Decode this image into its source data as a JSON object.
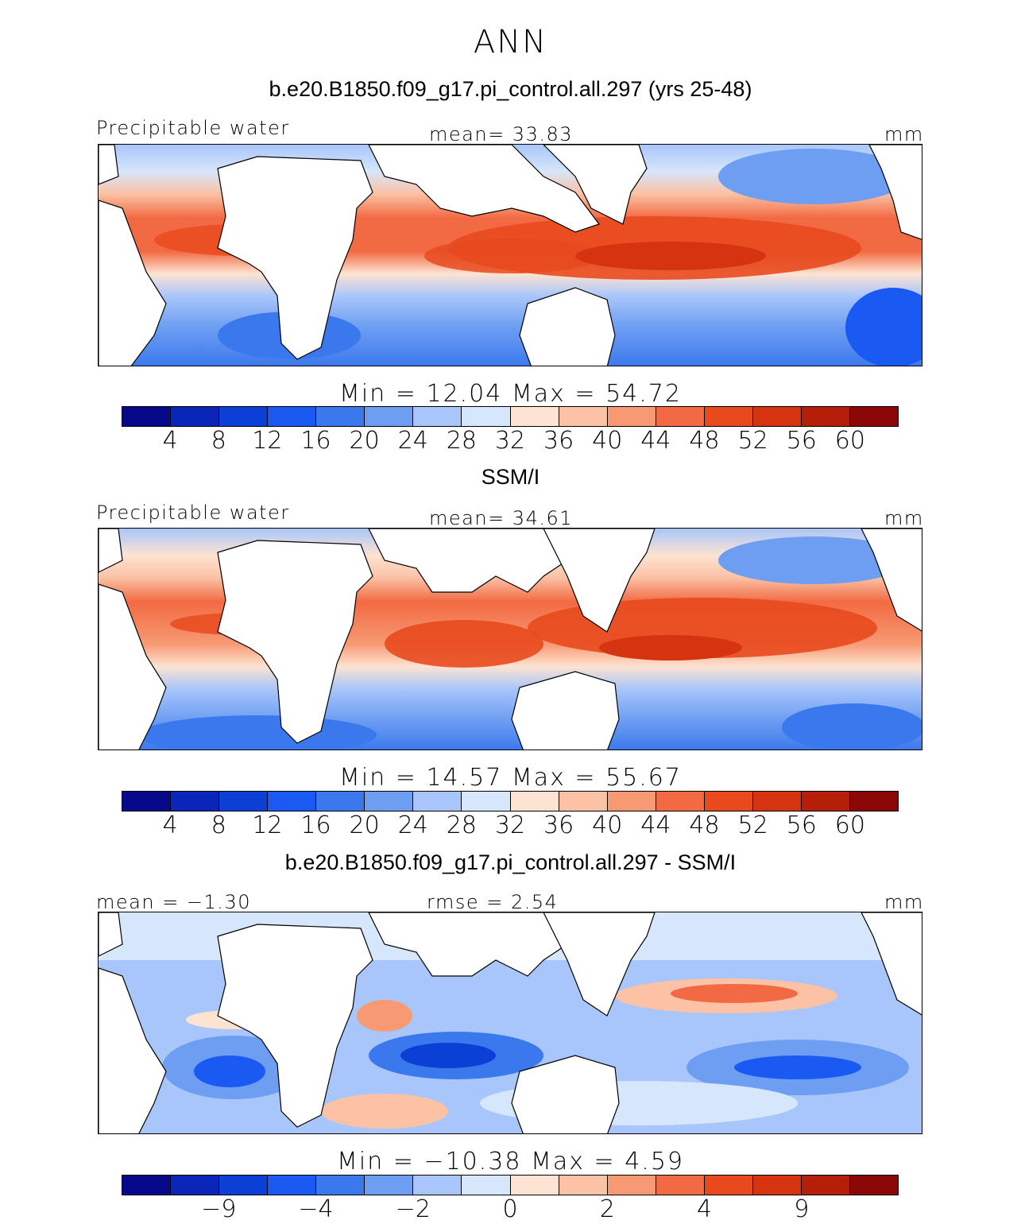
{
  "figure": {
    "season": "ANN",
    "units": "mm"
  },
  "panels": [
    {
      "title": "b.e20.B1850.f09_g17.pi_control.all.297 (yrs 25-48)",
      "variable": "Precipitable water",
      "left_stat": "",
      "center_stat": "mean=   33.83",
      "units": "mm",
      "minmax": "Min =   12.04  Max =   54.72",
      "min": 12.04,
      "max": 54.72,
      "colorbar_labels": [
        "4",
        "8",
        "12",
        "16",
        "20",
        "24",
        "28",
        "32",
        "36",
        "40",
        "44",
        "48",
        "52",
        "56",
        "60"
      ]
    },
    {
      "title": "SSM/I",
      "variable": "Precipitable water",
      "left_stat": "",
      "center_stat": "mean=   34.61",
      "units": "mm",
      "minmax": "Min =   14.57  Max =   55.67",
      "min": 14.57,
      "max": 55.67,
      "colorbar_labels": [
        "4",
        "8",
        "12",
        "16",
        "20",
        "24",
        "28",
        "32",
        "36",
        "40",
        "44",
        "48",
        "52",
        "56",
        "60"
      ]
    },
    {
      "title": "b.e20.B1850.f09_g17.pi_control.all.297 - SSM/I",
      "variable": "",
      "left_stat": "mean =  −1.30",
      "center_stat": "rmse =     2.54",
      "units": "mm",
      "minmax": "Min = −10.38  Max =    4.59",
      "min": -10.38,
      "max": 4.59,
      "colorbar_labels": [
        "−9",
        "−4",
        "−2",
        "0",
        "2",
        "4",
        "9"
      ]
    }
  ],
  "colorbar_colors": [
    "#08088a",
    "#0a26b8",
    "#0b3fd6",
    "#1a5af2",
    "#3a78ee",
    "#6d9ef2",
    "#a9c6fa",
    "#d6e6fb",
    "#fde3d2",
    "#fbc2a5",
    "#f79a74",
    "#f26a43",
    "#e84a1e",
    "#d63310",
    "#b51e08",
    "#8c0707"
  ],
  "colorbar_diff_colors": [
    "#08088a",
    "#0a26b8",
    "#0b3fd6",
    "#1a5af2",
    "#3a78ee",
    "#6d9ef2",
    "#a9c6fa",
    "#d6e6fb",
    "#fde3d2",
    "#fbc2a5",
    "#f79a74",
    "#f26a43",
    "#e84a1e",
    "#d63310",
    "#b51e08",
    "#8c0707"
  ]
}
